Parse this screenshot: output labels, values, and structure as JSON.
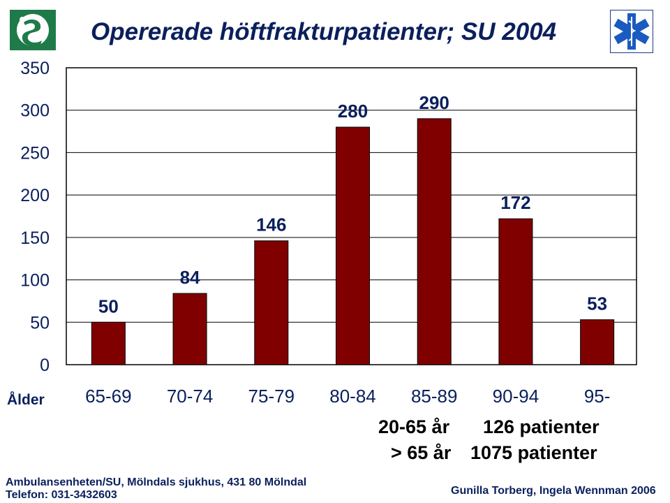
{
  "title": "Opererade höftfrakturpatienter; SU 2004",
  "chart_data": {
    "type": "bar",
    "title": "Opererade höftfrakturpatienter; SU 2004",
    "xlabel": "Ålder",
    "ylabel": "",
    "categories": [
      "65-69",
      "70-74",
      "75-79",
      "80-84",
      "85-89",
      "90-94",
      "95-"
    ],
    "values": [
      50,
      84,
      146,
      280,
      290,
      172,
      53
    ],
    "data_labels": [
      "50",
      "84",
      "146",
      "280",
      "290",
      "172",
      "53"
    ],
    "ylim": [
      0,
      350
    ],
    "yticks": [
      0,
      50,
      100,
      150,
      200,
      250,
      300,
      350
    ],
    "grid": true,
    "bar_color": "#800000"
  },
  "summary": {
    "line1_group": "20-65 år",
    "line1_count": "126 patienter",
    "line2_group": "> 65 år",
    "line2_count": "1075 patienter"
  },
  "footer": {
    "address": "Ambulansenheten/SU, Mölndals sjukhus, 431 80  Mölndal",
    "phone": "Telefon: 031-3432603",
    "authors": "Gunilla Torberg, Ingela Wennman 2006"
  },
  "logos": {
    "left": "su-logo-icon",
    "right": "star-of-life-icon"
  }
}
